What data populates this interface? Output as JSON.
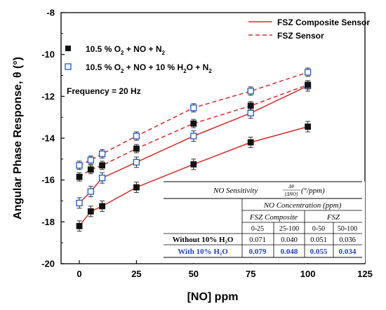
{
  "chart_data": {
    "type": "line",
    "title": "",
    "xlabel": "[NO] ppm",
    "ylabel": "Angular Phase Response, θ (°)",
    "xlim": [
      -8,
      125
    ],
    "ylim": [
      -20,
      -8
    ],
    "x_ticks": [
      "0",
      "25",
      "50",
      "75",
      "100",
      "125"
    ],
    "x_tick_values": [
      0,
      25,
      50,
      75,
      100,
      125
    ],
    "y_ticks": [
      "-20",
      "-18",
      "-16",
      "-14",
      "-12",
      "-10",
      "-8"
    ],
    "y_tick_values": [
      -20,
      -18,
      -16,
      -14,
      -12,
      -10,
      -8
    ],
    "x": [
      0,
      5,
      10,
      25,
      50,
      75,
      100
    ],
    "series": [
      {
        "marker": "filled",
        "line": "solid",
        "values": [
          -18.2,
          -17.5,
          -17.25,
          -16.35,
          -15.25,
          -14.2,
          -13.45
        ],
        "err": 0.25
      },
      {
        "marker": "open",
        "line": "solid",
        "values": [
          -17.1,
          -16.55,
          -15.9,
          -15.15,
          -13.9,
          -12.8,
          -11.5
        ],
        "err": 0.25
      },
      {
        "marker": "filled",
        "line": "dashed",
        "values": [
          -15.85,
          -15.5,
          -15.3,
          -14.5,
          -13.3,
          -12.45,
          -11.45
        ],
        "err": 0.2
      },
      {
        "marker": "open",
        "line": "dashed",
        "values": [
          -15.3,
          -15.05,
          -14.75,
          -13.9,
          -12.55,
          -11.75,
          -10.85
        ],
        "err": 0.2
      }
    ],
    "line_color": "#d62a2a",
    "marker_fill_color": "#111111",
    "marker_open_color": "#1f56c4",
    "legend_lines": [
      {
        "style": "solid",
        "label": "FSZ Composite Sensor"
      },
      {
        "style": "dashed",
        "label": "FSZ Sensor"
      }
    ],
    "legend_markers": [
      {
        "marker": "filled",
        "parts": [
          "10.5 % O",
          "2",
          " + NO + N",
          "2"
        ]
      },
      {
        "marker": "open",
        "parts": [
          "10.5 % O",
          "2",
          " + NO + 10 % H",
          "2",
          "O + N",
          "2"
        ]
      }
    ],
    "annotation": "Frequency = 20 Hz",
    "table": {
      "title_prefix": "NO Sensitivity ",
      "frac_num": "Δθ",
      "frac_den": "[ΔNO]",
      "title_suffix": " (°/ppm)",
      "concentration_header": "NO Concentration (ppm)",
      "group_headers": [
        "FSZ Composite",
        "FSZ"
      ],
      "ranges": [
        "0-25",
        "25-100",
        "0-50",
        "50-100"
      ],
      "rows": [
        {
          "label": "Without 10% H₂O",
          "values": [
            "0.071",
            "0.040",
            "0.051",
            "0.036"
          ]
        },
        {
          "label": "With 10% H₂O",
          "values": [
            "0.079",
            "0.048",
            "0.055",
            "0.034"
          ]
        }
      ]
    }
  }
}
